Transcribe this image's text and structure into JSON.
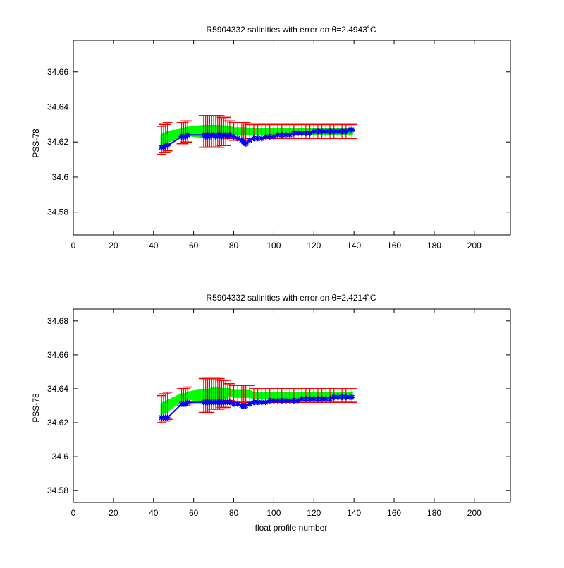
{
  "colors": {
    "background": "#ffffff",
    "axes": "#000000",
    "error_bars": "#ff0000",
    "ensemble_band": "#00ff00",
    "float_values": "#0000ff"
  },
  "chart_data": [
    {
      "type": "line",
      "title": "R5904332 salinities with error on θ=2.4943˚C",
      "ylabel": "PSS-78",
      "xlabel": "",
      "xlim": [
        0,
        218
      ],
      "ylim": [
        34.567,
        34.678
      ],
      "x_ticks": [
        0,
        20,
        40,
        60,
        80,
        100,
        120,
        140,
        160,
        180,
        200
      ],
      "y_ticks": [
        34.58,
        34.6,
        34.62,
        34.64,
        34.66
      ],
      "y_tick_labels": [
        "34.58",
        "34.6",
        "34.62",
        "34.64",
        "34.66"
      ],
      "grid": false,
      "legend": "none",
      "series": [
        {
          "role": "float",
          "color": "#0000ff",
          "x": [
            44,
            45,
            46,
            47,
            54,
            55,
            56,
            57,
            65,
            66,
            67,
            68,
            69,
            70,
            71,
            72,
            73,
            74,
            75,
            76,
            77,
            78,
            80,
            82,
            84,
            85,
            86,
            88,
            90,
            92,
            94,
            96,
            98,
            100,
            102,
            104,
            106,
            108,
            110,
            112,
            114,
            116,
            118,
            120,
            122,
            124,
            126,
            128,
            130,
            132,
            134,
            136,
            138,
            139
          ],
          "y": [
            34.617,
            34.617,
            34.618,
            34.618,
            34.623,
            34.623,
            34.623,
            34.624,
            34.624,
            34.623,
            34.624,
            34.623,
            34.624,
            34.624,
            34.623,
            34.624,
            34.624,
            34.623,
            34.624,
            34.624,
            34.623,
            34.624,
            34.623,
            34.622,
            34.621,
            34.62,
            34.619,
            34.621,
            34.622,
            34.622,
            34.622,
            34.623,
            34.623,
            34.623,
            34.624,
            34.624,
            34.624,
            34.624,
            34.625,
            34.625,
            34.625,
            34.625,
            34.625,
            34.626,
            34.626,
            34.626,
            34.626,
            34.626,
            34.626,
            34.626,
            34.626,
            34.626,
            34.627,
            34.627
          ]
        },
        {
          "role": "mapped",
          "color": "#00ff00",
          "x": [
            44,
            45,
            46,
            47,
            54,
            55,
            56,
            57,
            65,
            66,
            67,
            68,
            69,
            70,
            71,
            72,
            73,
            74,
            75,
            76,
            77,
            78,
            80,
            82,
            84,
            85,
            86,
            88,
            90,
            92,
            94,
            96,
            98,
            100,
            102,
            104,
            106,
            108,
            110,
            112,
            114,
            116,
            118,
            120,
            122,
            124,
            126,
            128,
            130,
            132,
            134,
            136,
            138,
            139
          ],
          "y": [
            34.621,
            34.622,
            34.622,
            34.623,
            34.625,
            34.625,
            34.626,
            34.626,
            34.626,
            34.626,
            34.626,
            34.626,
            34.626,
            34.626,
            34.626,
            34.626,
            34.626,
            34.626,
            34.626,
            34.626,
            34.627,
            34.627,
            34.626,
            34.626,
            34.626,
            34.626,
            34.626,
            34.626,
            34.626,
            34.626,
            34.626,
            34.626,
            34.626,
            34.626,
            34.626,
            34.626,
            34.626,
            34.626,
            34.626,
            34.626,
            34.626,
            34.626,
            34.626,
            34.626,
            34.626,
            34.626,
            34.626,
            34.626,
            34.626,
            34.626,
            34.626,
            34.626,
            34.626,
            34.626
          ],
          "error": [
            0.008,
            0.008,
            0.008,
            0.008,
            0.006,
            0.006,
            0.006,
            0.006,
            0.009,
            0.009,
            0.009,
            0.009,
            0.009,
            0.009,
            0.009,
            0.009,
            0.009,
            0.008,
            0.008,
            0.008,
            0.005,
            0.005,
            0.005,
            0.005,
            0.005,
            0.005,
            0.005,
            0.004,
            0.004,
            0.004,
            0.004,
            0.004,
            0.004,
            0.004,
            0.004,
            0.004,
            0.004,
            0.004,
            0.004,
            0.004,
            0.004,
            0.004,
            0.004,
            0.004,
            0.004,
            0.004,
            0.004,
            0.004,
            0.004,
            0.004,
            0.004,
            0.004,
            0.004,
            0.004
          ]
        }
      ]
    },
    {
      "type": "line",
      "title": "R5904332 salinities with error on θ=2.4214˚C",
      "ylabel": "PSS-78",
      "xlabel": "float profile number",
      "xlim": [
        0,
        218
      ],
      "ylim": [
        34.573,
        34.687
      ],
      "x_ticks": [
        0,
        20,
        40,
        60,
        80,
        100,
        120,
        140,
        160,
        180,
        200
      ],
      "y_ticks": [
        34.58,
        34.6,
        34.62,
        34.64,
        34.66,
        34.68
      ],
      "y_tick_labels": [
        "34.58",
        "34.6",
        "34.62",
        "34.64",
        "34.66",
        "34.68"
      ],
      "grid": false,
      "legend": "none",
      "series": [
        {
          "role": "float",
          "color": "#0000ff",
          "x": [
            44,
            45,
            46,
            47,
            54,
            55,
            56,
            57,
            65,
            66,
            67,
            68,
            69,
            70,
            71,
            72,
            73,
            74,
            75,
            76,
            77,
            78,
            80,
            82,
            84,
            85,
            86,
            88,
            90,
            92,
            94,
            96,
            98,
            100,
            102,
            104,
            106,
            108,
            110,
            112,
            114,
            116,
            118,
            120,
            122,
            124,
            126,
            128,
            130,
            132,
            134,
            136,
            138,
            139
          ],
          "y": [
            34.623,
            34.623,
            34.623,
            34.623,
            34.631,
            34.631,
            34.631,
            34.632,
            34.632,
            34.632,
            34.632,
            34.632,
            34.632,
            34.632,
            34.632,
            34.632,
            34.632,
            34.632,
            34.632,
            34.632,
            34.632,
            34.632,
            34.631,
            34.631,
            34.63,
            34.63,
            34.63,
            34.631,
            34.632,
            34.632,
            34.632,
            34.632,
            34.633,
            34.633,
            34.633,
            34.633,
            34.633,
            34.633,
            34.633,
            34.633,
            34.634,
            34.634,
            34.634,
            34.634,
            34.634,
            34.634,
            34.634,
            34.634,
            34.635,
            34.635,
            34.635,
            34.635,
            34.635,
            34.635
          ]
        },
        {
          "role": "mapped",
          "color": "#00ff00",
          "x": [
            44,
            45,
            46,
            47,
            54,
            55,
            56,
            57,
            65,
            66,
            67,
            68,
            69,
            70,
            71,
            72,
            73,
            74,
            75,
            76,
            77,
            78,
            80,
            82,
            84,
            85,
            86,
            88,
            90,
            92,
            94,
            96,
            98,
            100,
            102,
            104,
            106,
            108,
            110,
            112,
            114,
            116,
            118,
            120,
            122,
            124,
            126,
            128,
            130,
            132,
            134,
            136,
            138,
            139
          ],
          "y": [
            34.628,
            34.629,
            34.629,
            34.63,
            34.635,
            34.635,
            34.635,
            34.636,
            34.636,
            34.636,
            34.636,
            34.636,
            34.637,
            34.637,
            34.637,
            34.637,
            34.637,
            34.637,
            34.637,
            34.637,
            34.638,
            34.638,
            34.637,
            34.637,
            34.637,
            34.637,
            34.637,
            34.637,
            34.636,
            34.636,
            34.636,
            34.636,
            34.636,
            34.636,
            34.636,
            34.636,
            34.636,
            34.636,
            34.636,
            34.636,
            34.636,
            34.636,
            34.636,
            34.636,
            34.636,
            34.636,
            34.636,
            34.636,
            34.636,
            34.636,
            34.636,
            34.636,
            34.636,
            34.636
          ],
          "error": [
            0.008,
            0.008,
            0.008,
            0.008,
            0.005,
            0.005,
            0.005,
            0.005,
            0.01,
            0.01,
            0.01,
            0.01,
            0.009,
            0.009,
            0.009,
            0.009,
            0.009,
            0.008,
            0.008,
            0.008,
            0.005,
            0.005,
            0.005,
            0.005,
            0.005,
            0.005,
            0.005,
            0.005,
            0.004,
            0.004,
            0.004,
            0.004,
            0.004,
            0.004,
            0.004,
            0.004,
            0.004,
            0.004,
            0.004,
            0.004,
            0.004,
            0.004,
            0.004,
            0.004,
            0.004,
            0.004,
            0.004,
            0.004,
            0.004,
            0.004,
            0.004,
            0.004,
            0.004,
            0.004
          ]
        }
      ]
    }
  ]
}
